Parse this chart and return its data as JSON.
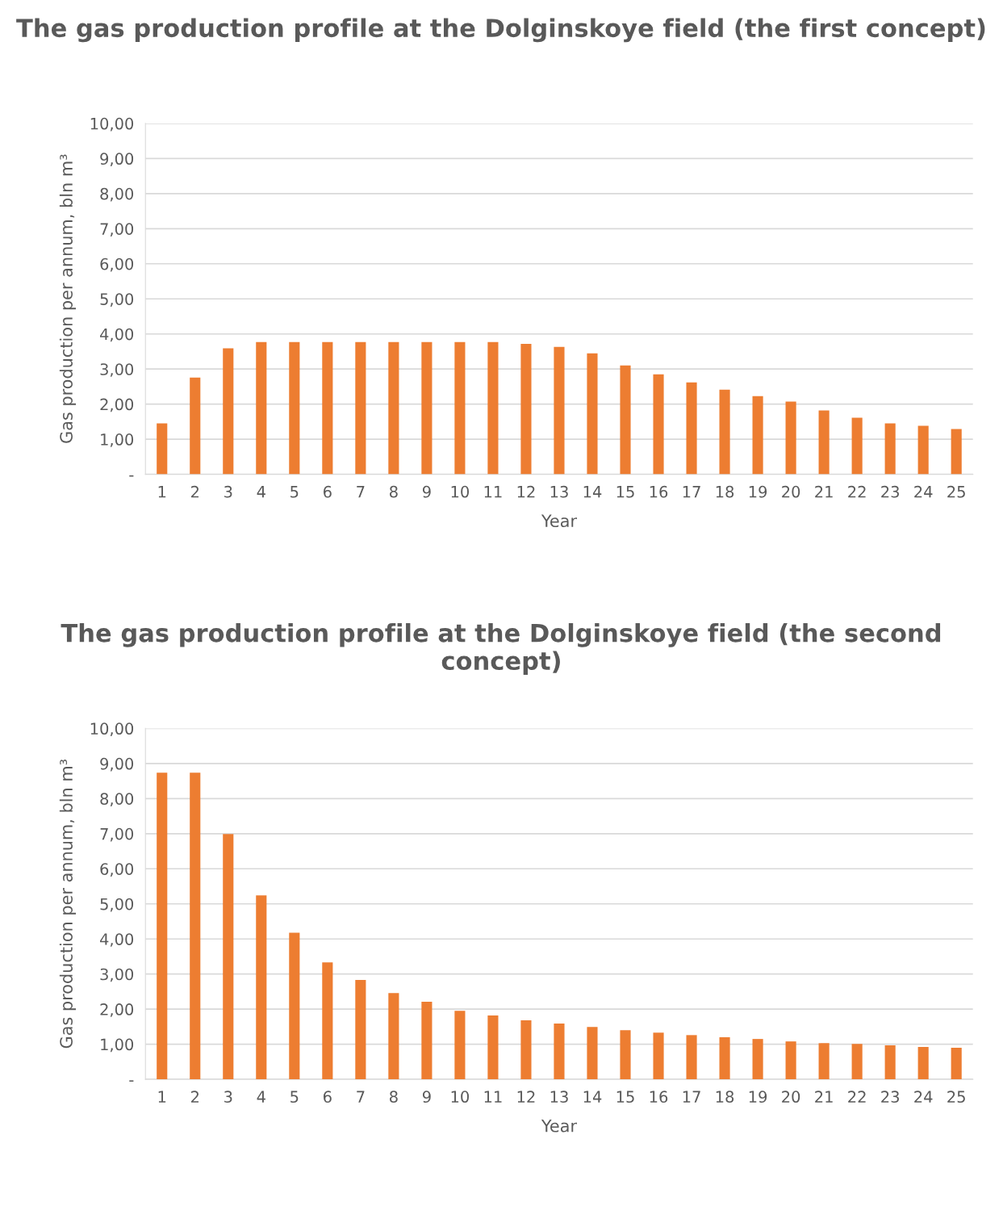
{
  "chart_data": [
    {
      "type": "bar",
      "title": "The gas production profile at the Dolginskoye field (the first concept)",
      "xlabel": "Year",
      "ylabel": "Gas production per annum, bln m³",
      "categories": [
        "1",
        "2",
        "3",
        "4",
        "5",
        "6",
        "7",
        "8",
        "9",
        "10",
        "11",
        "12",
        "13",
        "14",
        "15",
        "16",
        "17",
        "18",
        "19",
        "20",
        "21",
        "22",
        "23",
        "24",
        "25"
      ],
      "values": [
        1.45,
        2.76,
        3.59,
        3.77,
        3.77,
        3.77,
        3.77,
        3.77,
        3.77,
        3.77,
        3.77,
        3.72,
        3.63,
        3.45,
        3.1,
        2.85,
        2.62,
        2.41,
        2.23,
        2.07,
        1.82,
        1.61,
        1.45,
        1.38,
        1.29
      ],
      "color": "#ed7d31",
      "ylim": [
        0,
        10
      ],
      "yticks": [
        {
          "value": 0,
          "label": "-"
        },
        {
          "value": 1,
          "label": "1,00"
        },
        {
          "value": 2,
          "label": "2,00"
        },
        {
          "value": 3,
          "label": "3,00"
        },
        {
          "value": 4,
          "label": "4,00"
        },
        {
          "value": 5,
          "label": "5,00"
        },
        {
          "value": 6,
          "label": "6,00"
        },
        {
          "value": 7,
          "label": "7,00"
        },
        {
          "value": 8,
          "label": "8,00"
        },
        {
          "value": 9,
          "label": "9,00"
        },
        {
          "value": 10,
          "label": "10,00"
        }
      ],
      "grid": "y"
    },
    {
      "type": "bar",
      "title": "The gas production profile at the Dolginskoye field (the second concept)",
      "xlabel": "Year",
      "ylabel": "Gas production per annum, bln m³",
      "categories": [
        "1",
        "2",
        "3",
        "4",
        "5",
        "6",
        "7",
        "8",
        "9",
        "10",
        "11",
        "12",
        "13",
        "14",
        "15",
        "16",
        "17",
        "18",
        "19",
        "20",
        "21",
        "22",
        "23",
        "24",
        "25"
      ],
      "values": [
        8.74,
        8.74,
        6.99,
        5.24,
        4.18,
        3.33,
        2.83,
        2.46,
        2.21,
        1.95,
        1.82,
        1.68,
        1.59,
        1.49,
        1.4,
        1.33,
        1.26,
        1.2,
        1.15,
        1.08,
        1.03,
        1.01,
        0.97,
        0.92,
        0.9
      ],
      "color": "#ed7d31",
      "ylim": [
        0,
        10
      ],
      "yticks": [
        {
          "value": 0,
          "label": "-"
        },
        {
          "value": 1,
          "label": "1,00"
        },
        {
          "value": 2,
          "label": "2,00"
        },
        {
          "value": 3,
          "label": "3,00"
        },
        {
          "value": 4,
          "label": "4,00"
        },
        {
          "value": 5,
          "label": "5,00"
        },
        {
          "value": 6,
          "label": "6,00"
        },
        {
          "value": 7,
          "label": "7,00"
        },
        {
          "value": 8,
          "label": "8,00"
        },
        {
          "value": 9,
          "label": "9,00"
        },
        {
          "value": 10,
          "label": "10,00"
        }
      ],
      "grid": "y"
    }
  ]
}
